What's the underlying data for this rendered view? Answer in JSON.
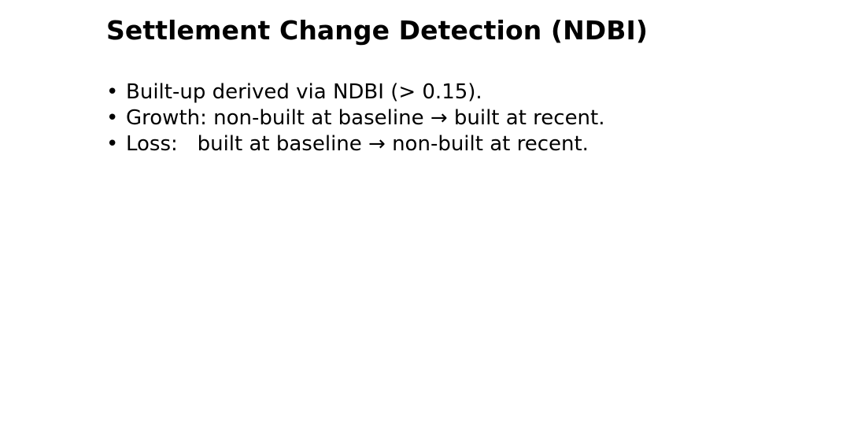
{
  "slide": {
    "title": "Settlement Change Detection (NDBI)",
    "bullet_marker": "•",
    "bullets": [
      "Built-up derived via NDBI (> 0.15).",
      "Growth: non-built at baseline → built at recent.",
      "Loss:   built at baseline → non-built at recent."
    ]
  }
}
